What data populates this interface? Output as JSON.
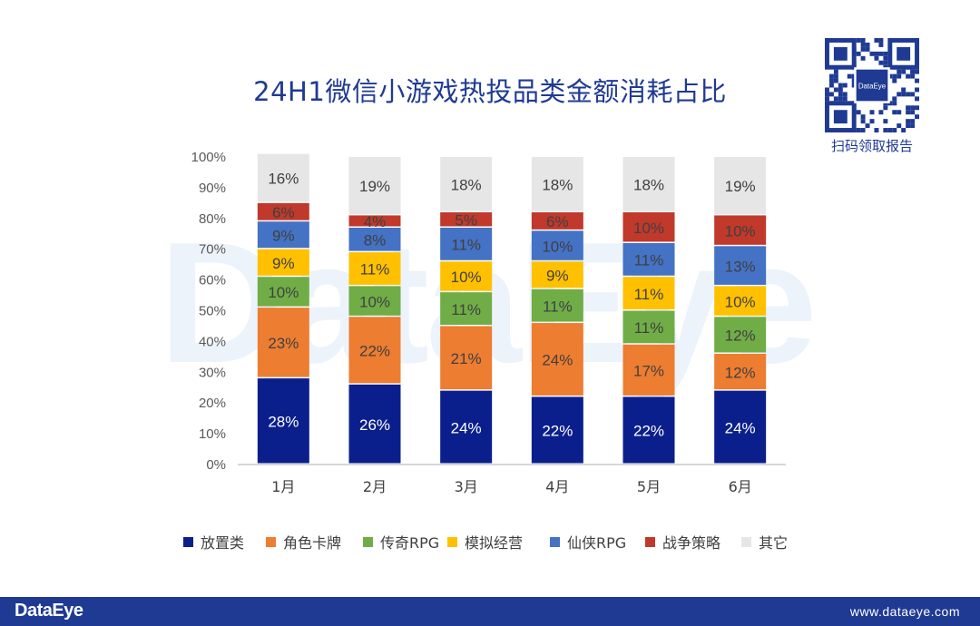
{
  "watermark": "DataEye",
  "qr": {
    "center_text": "DataEye",
    "caption": "扫码领取报告"
  },
  "footer": {
    "logo": "DataEye",
    "url": "www.dataeye.com"
  },
  "chart_data": {
    "type": "bar",
    "stacked": true,
    "title": "24H1微信小游戏热投品类金额消耗占比",
    "categories": [
      "1月",
      "2月",
      "3月",
      "4月",
      "5月",
      "6月"
    ],
    "ylim": [
      0,
      100
    ],
    "yticks": [
      0,
      10,
      20,
      30,
      40,
      50,
      60,
      70,
      80,
      90,
      100
    ],
    "ytick_labels": [
      "0%",
      "10%",
      "20%",
      "30%",
      "40%",
      "50%",
      "60%",
      "70%",
      "80%",
      "90%",
      "100%"
    ],
    "xlabel": "",
    "ylabel": "",
    "grid": false,
    "legend_position": "bottom",
    "series": [
      {
        "name": "放置类",
        "color": "#0b1f8c",
        "label_color": "#ffffff",
        "values": [
          28,
          26,
          24,
          22,
          22,
          24
        ]
      },
      {
        "name": "角色卡牌",
        "color": "#ed7d31",
        "label_color": "#404040",
        "values": [
          23,
          22,
          21,
          24,
          17,
          12
        ]
      },
      {
        "name": "传奇RPG",
        "color": "#70ad47",
        "label_color": "#404040",
        "values": [
          10,
          10,
          11,
          11,
          11,
          12
        ]
      },
      {
        "name": "模拟经营",
        "color": "#ffc000",
        "label_color": "#404040",
        "values": [
          9,
          11,
          10,
          9,
          11,
          10
        ]
      },
      {
        "name": "仙侠RPG",
        "color": "#4472c4",
        "label_color": "#404040",
        "values": [
          9,
          8,
          11,
          10,
          11,
          13
        ]
      },
      {
        "name": "战争策略",
        "color": "#c0392b",
        "label_color": "#404040",
        "values": [
          6,
          4,
          5,
          6,
          10,
          10
        ]
      },
      {
        "name": "其它",
        "color": "#e6e6e6",
        "label_color": "#404040",
        "values": [
          16,
          19,
          18,
          18,
          18,
          19
        ]
      }
    ]
  }
}
